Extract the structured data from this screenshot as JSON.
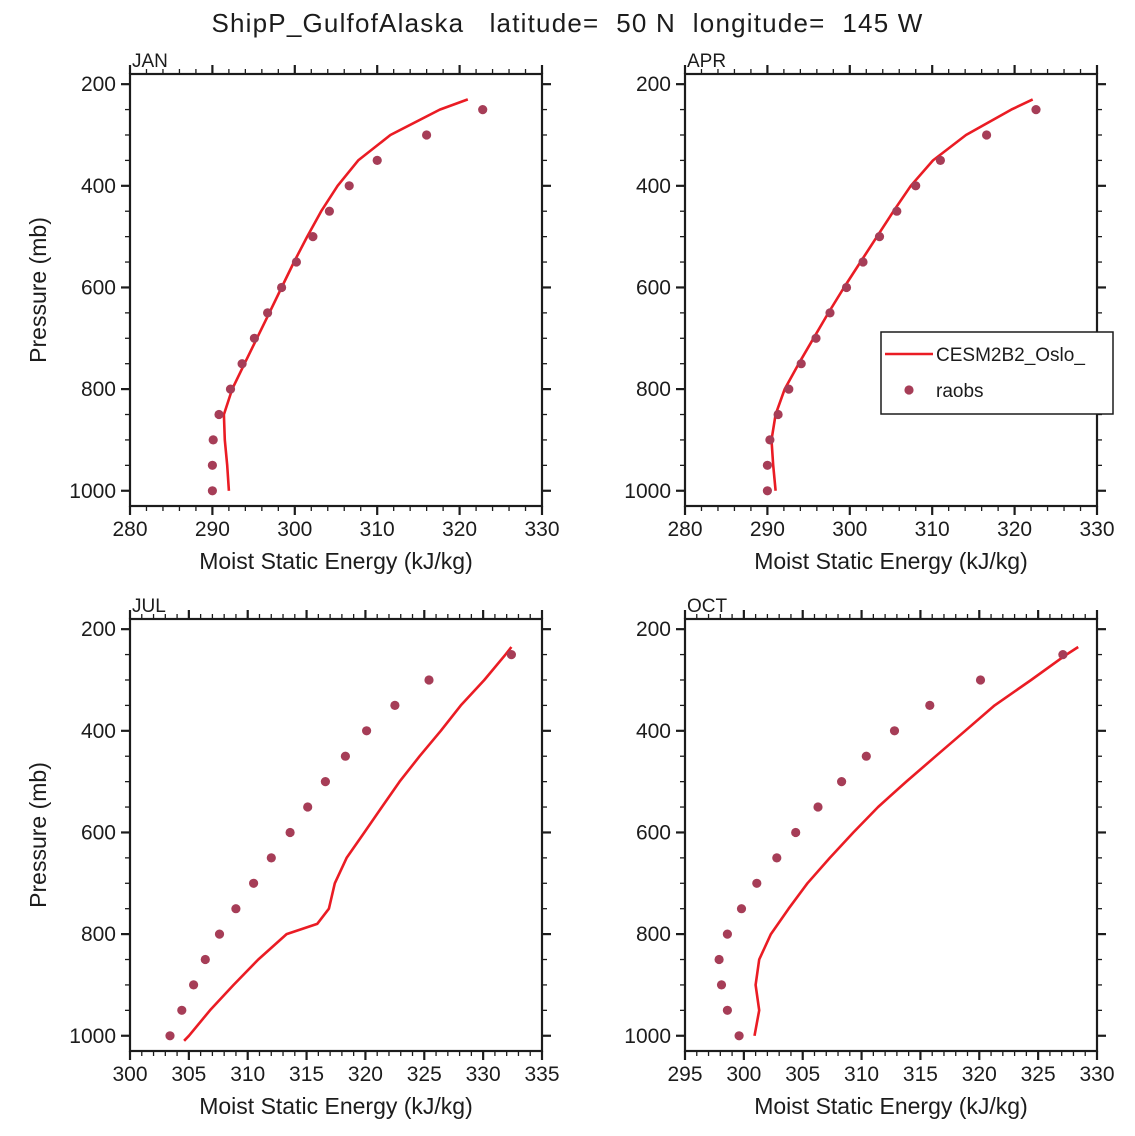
{
  "page": {
    "title": "ShipP_GulfofAlaska   latitude=  50 N  longitude=  145 W"
  },
  "colors": {
    "model_line": "#ea1c24",
    "raobs_dot": "#a63d57",
    "text": "#1c1c1c"
  },
  "legend": {
    "model_label": "CESM2B2_Oslo_",
    "raobs_label": "raobs"
  },
  "chart_data": [
    {
      "type": "line",
      "title": "JAN",
      "xlabel": "Moist Static Energy (kJ/kg)",
      "ylabel": "Pressure (mb)",
      "xlim": [
        280,
        330
      ],
      "xtick_step": 10,
      "xminor_step": 2,
      "ylim": [
        180,
        1030
      ],
      "yticks": [
        200,
        400,
        600,
        800,
        1000
      ],
      "yminor_step": 50,
      "show_ylabel": true,
      "show_legend": false,
      "series": [
        {
          "name": "CESM2B2_Oslo_",
          "type": "line",
          "pressure": [
            1000,
            950,
            900,
            850,
            800,
            750,
            700,
            650,
            600,
            550,
            500,
            450,
            400,
            350,
            300,
            250,
            230
          ],
          "mse": [
            292.0,
            291.8,
            291.5,
            291.4,
            292.4,
            293.9,
            295.4,
            296.9,
            298.4,
            299.9,
            301.5,
            303.2,
            305.2,
            307.7,
            311.6,
            317.6,
            321.0
          ]
        },
        {
          "name": "raobs",
          "type": "scatter",
          "pressure": [
            1000,
            950,
            900,
            850,
            800,
            750,
            700,
            650,
            600,
            550,
            500,
            450,
            400,
            350,
            300,
            250
          ],
          "mse": [
            290.0,
            290.0,
            290.1,
            290.8,
            292.2,
            293.6,
            295.1,
            296.7,
            298.4,
            300.2,
            302.2,
            304.2,
            306.6,
            310.0,
            316.0,
            322.8
          ]
        }
      ]
    },
    {
      "type": "line",
      "title": "APR",
      "xlabel": "Moist Static Energy (kJ/kg)",
      "ylabel": "Pressure (mb)",
      "xlim": [
        280,
        330
      ],
      "xtick_step": 10,
      "xminor_step": 2,
      "ylim": [
        180,
        1030
      ],
      "yticks": [
        200,
        400,
        600,
        800,
        1000
      ],
      "yminor_step": 50,
      "show_ylabel": false,
      "show_legend": true,
      "series": [
        {
          "name": "CESM2B2_Oslo_",
          "type": "line",
          "pressure": [
            1000,
            950,
            900,
            850,
            800,
            750,
            700,
            650,
            600,
            550,
            500,
            450,
            400,
            350,
            300,
            250,
            230
          ],
          "mse": [
            291.0,
            290.7,
            290.5,
            291.0,
            292.1,
            293.8,
            295.6,
            297.4,
            299.3,
            301.3,
            303.3,
            305.3,
            307.4,
            310.1,
            314.1,
            319.6,
            322.2
          ]
        },
        {
          "name": "raobs",
          "type": "scatter",
          "pressure": [
            1000,
            950,
            900,
            850,
            800,
            750,
            700,
            650,
            600,
            550,
            500,
            450,
            400,
            350,
            300,
            250
          ],
          "mse": [
            290.0,
            290.0,
            290.3,
            291.3,
            292.6,
            294.1,
            295.9,
            297.6,
            299.6,
            301.6,
            303.6,
            305.7,
            308.0,
            311.0,
            316.6,
            322.6
          ]
        }
      ]
    },
    {
      "type": "line",
      "title": "JUL",
      "xlabel": "Moist Static Energy (kJ/kg)",
      "ylabel": "Pressure (mb)",
      "xlim": [
        300,
        335
      ],
      "xtick_step": 5,
      "xminor_step": 1,
      "ylim": [
        180,
        1030
      ],
      "yticks": [
        200,
        400,
        600,
        800,
        1000
      ],
      "yminor_step": 50,
      "show_ylabel": true,
      "show_legend": false,
      "series": [
        {
          "name": "CESM2B2_Oslo_",
          "type": "line",
          "pressure": [
            1010,
            1000,
            950,
            900,
            850,
            800,
            780,
            750,
            700,
            650,
            600,
            550,
            500,
            450,
            400,
            350,
            300,
            250,
            235
          ],
          "mse": [
            304.6,
            305.0,
            306.8,
            308.8,
            310.9,
            313.3,
            315.9,
            316.9,
            317.4,
            318.4,
            319.9,
            321.4,
            322.9,
            324.6,
            326.4,
            328.1,
            330.1,
            331.9,
            332.4
          ]
        },
        {
          "name": "raobs",
          "type": "scatter",
          "pressure": [
            1000,
            950,
            900,
            850,
            800,
            750,
            700,
            650,
            600,
            550,
            500,
            450,
            400,
            350,
            300,
            250
          ],
          "mse": [
            303.4,
            304.4,
            305.4,
            306.4,
            307.6,
            309.0,
            310.5,
            312.0,
            313.6,
            315.1,
            316.6,
            318.3,
            320.1,
            322.5,
            325.4,
            332.4
          ]
        }
      ]
    },
    {
      "type": "line",
      "title": "OCT",
      "xlabel": "Moist Static Energy (kJ/kg)",
      "ylabel": "Pressure (mb)",
      "xlim": [
        295,
        330
      ],
      "xtick_step": 5,
      "xminor_step": 1,
      "ylim": [
        180,
        1030
      ],
      "yticks": [
        200,
        400,
        600,
        800,
        1000
      ],
      "yminor_step": 50,
      "show_ylabel": false,
      "show_legend": false,
      "series": [
        {
          "name": "CESM2B2_Oslo_",
          "type": "line",
          "pressure": [
            1000,
            950,
            900,
            850,
            800,
            750,
            700,
            650,
            600,
            550,
            500,
            450,
            400,
            350,
            300,
            250,
            235
          ],
          "mse": [
            300.9,
            301.3,
            301.0,
            301.3,
            302.3,
            303.8,
            305.4,
            307.3,
            309.3,
            311.4,
            313.8,
            316.3,
            318.8,
            321.3,
            324.4,
            327.4,
            328.4
          ]
        },
        {
          "name": "raobs",
          "type": "scatter",
          "pressure": [
            1000,
            950,
            900,
            850,
            800,
            750,
            700,
            650,
            600,
            550,
            500,
            450,
            400,
            350,
            300,
            250
          ],
          "mse": [
            299.6,
            298.6,
            298.1,
            297.9,
            298.6,
            299.8,
            301.1,
            302.8,
            304.4,
            306.3,
            308.3,
            310.4,
            312.8,
            315.8,
            320.1,
            327.1
          ]
        }
      ]
    }
  ]
}
